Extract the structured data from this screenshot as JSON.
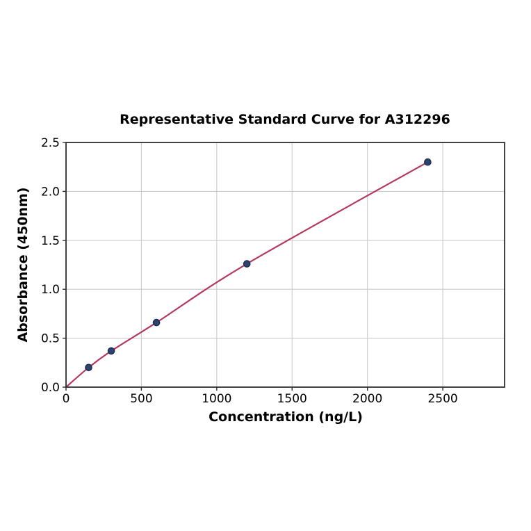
{
  "figure": {
    "background": "#ffffff"
  },
  "chart_data": {
    "type": "scatter",
    "title": "Representative Standard Curve for A312296",
    "xlabel": "Concentration (ng/L)",
    "ylabel": "Absorbance (450nm)",
    "xlim": [
      0,
      2910
    ],
    "ylim": [
      0,
      2.5
    ],
    "xtick_values": [
      0,
      500,
      1000,
      1500,
      2000,
      2500
    ],
    "xtick_labels": [
      "0",
      "500",
      "1000",
      "1500",
      "2000",
      "2500"
    ],
    "ytick_values": [
      0,
      0.5,
      1.0,
      1.5,
      2.0,
      2.5
    ],
    "ytick_labels": [
      "0.0",
      "0.5",
      "1.0",
      "1.5",
      "2.0",
      "2.5"
    ],
    "grid": true,
    "legend": null,
    "points": [
      {
        "x": 150,
        "y": 0.2
      },
      {
        "x": 300,
        "y": 0.37
      },
      {
        "x": 600,
        "y": 0.66
      },
      {
        "x": 1200,
        "y": 1.26
      },
      {
        "x": 2400,
        "y": 2.3
      }
    ],
    "fit_curve": {
      "starts_at_origin": true,
      "ends_at_last_point": true
    },
    "colors": {
      "curve": "#b5395f",
      "marker_fill": "#2d4470",
      "marker_edge": "#1d2c4d",
      "grid": "#cccccc",
      "spine": "#2f2f2f",
      "text": "#000000"
    }
  }
}
